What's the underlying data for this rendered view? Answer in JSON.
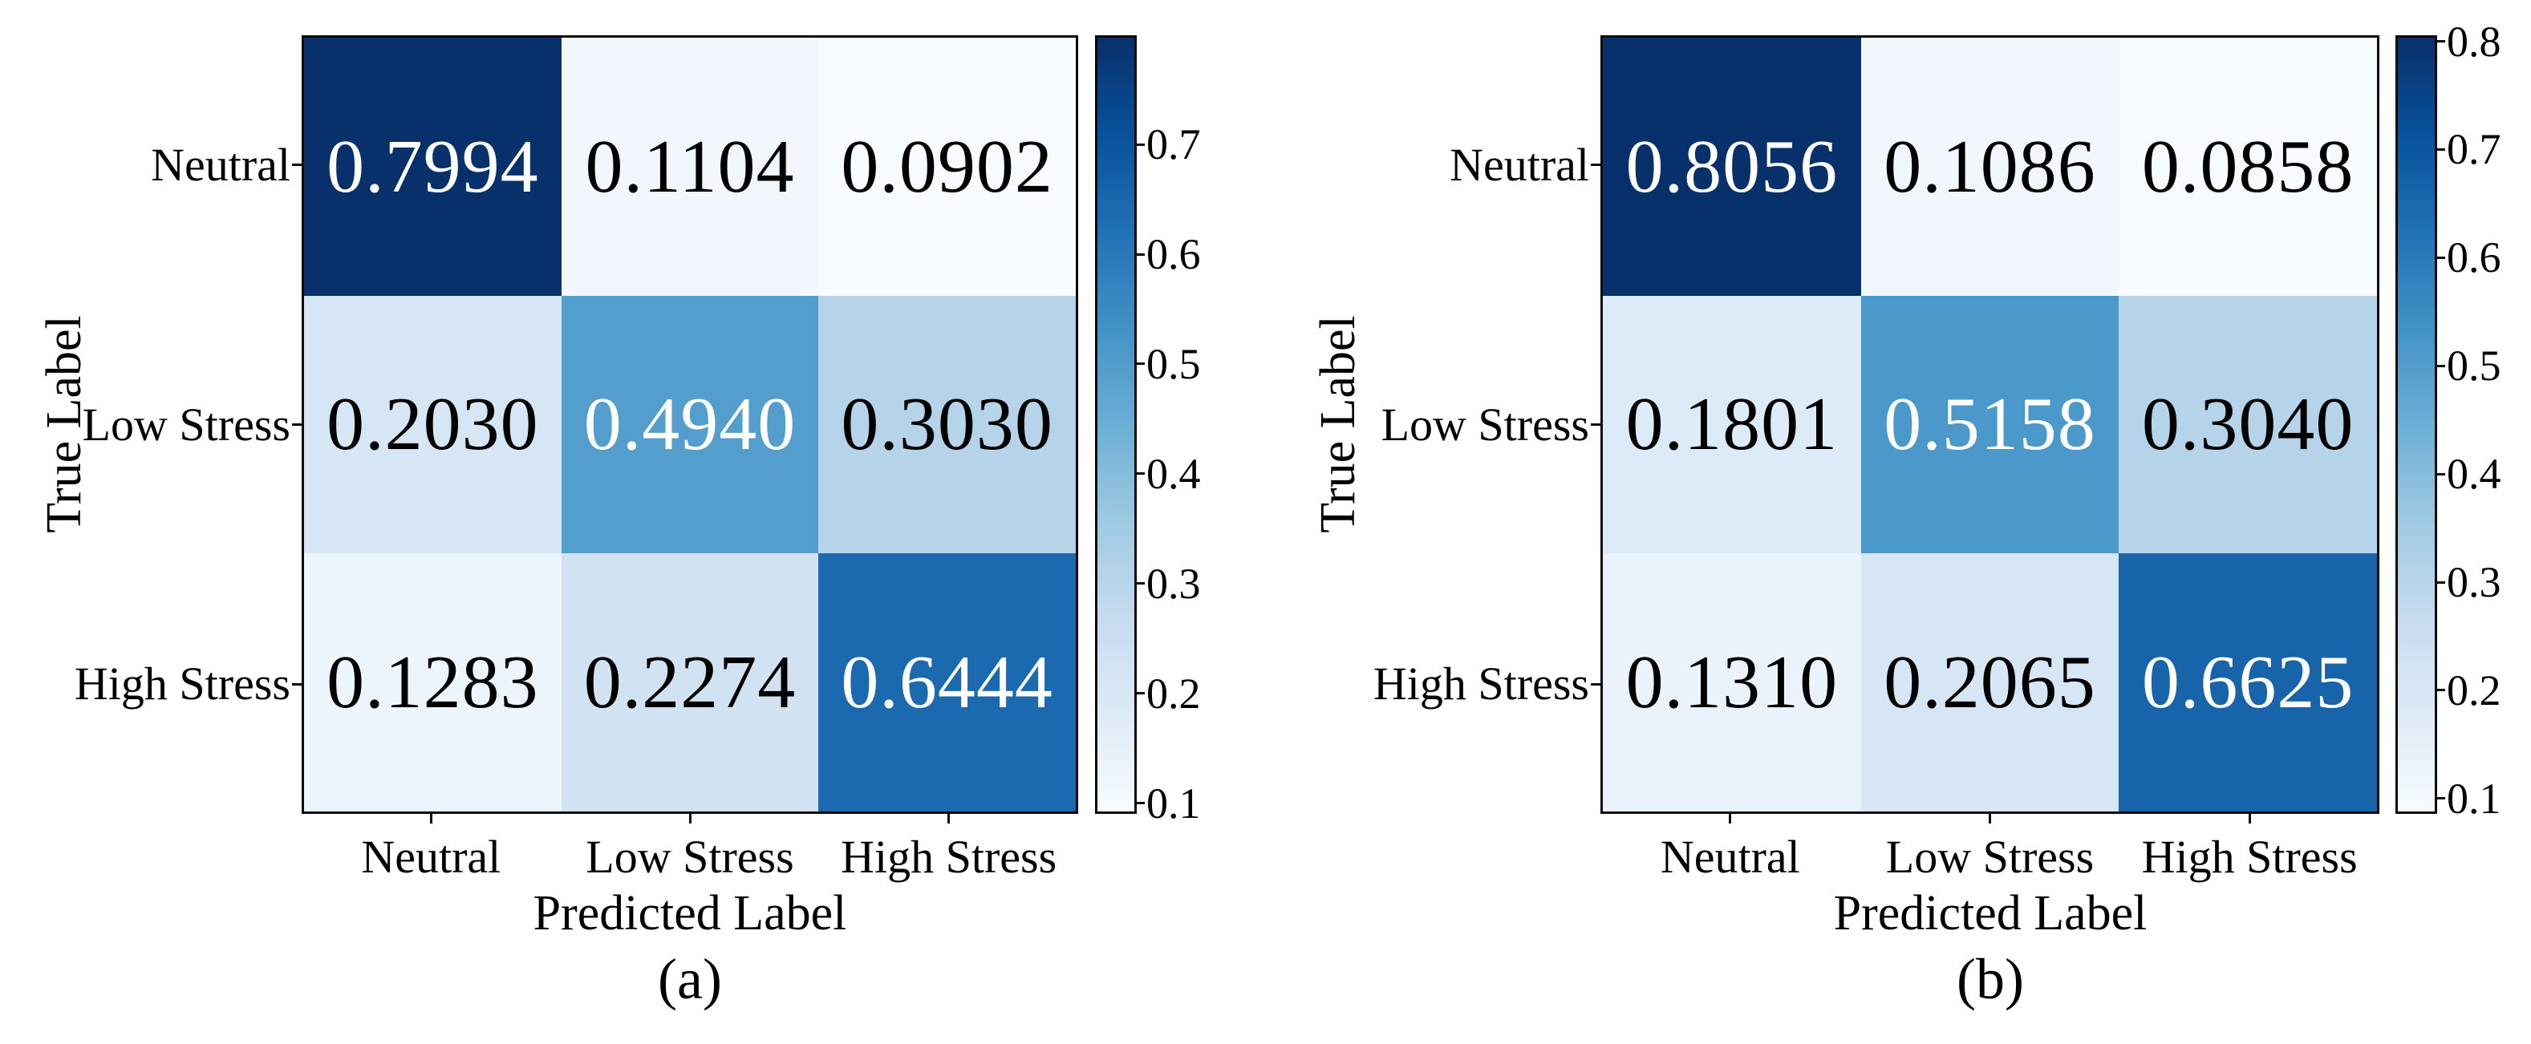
{
  "figure": {
    "background": "#ffffff",
    "text_color": "#000000",
    "spine_color": "#0a0a0a",
    "colormap_name": "Blues",
    "colormap_stops": [
      [
        "0%",
        "#f7fbff"
      ],
      [
        "12.5%",
        "#deebf7"
      ],
      [
        "25%",
        "#c6dbef"
      ],
      [
        "37.5%",
        "#9ecae1"
      ],
      [
        "50%",
        "#6baed6"
      ],
      [
        "62.5%",
        "#4292c6"
      ],
      [
        "75%",
        "#2171b5"
      ],
      [
        "87.5%",
        "#08519c"
      ],
      [
        "100%",
        "#08306b"
      ]
    ]
  },
  "chart_data": [
    {
      "type": "heatmap",
      "panel_label": "(a)",
      "xlabel": "Predicted Label",
      "ylabel": "True Label",
      "x_tick_labels": [
        "Neutral",
        "Low Stress",
        "High Stress"
      ],
      "y_tick_labels": [
        "Neutral",
        "Low Stress",
        "High Stress"
      ],
      "values": [
        [
          0.7994,
          0.1104,
          0.0902
        ],
        [
          0.203,
          0.494,
          0.303
        ],
        [
          0.1283,
          0.2274,
          0.6444
        ]
      ],
      "cell_text": [
        [
          "0.7994",
          "0.1104",
          "0.0902"
        ],
        [
          "0.2030",
          "0.4940",
          "0.3030"
        ],
        [
          "0.1283",
          "0.2274",
          "0.6444"
        ]
      ],
      "cell_colors": [
        [
          "#08306b",
          "#f1f7fd",
          "#f7fbff"
        ],
        [
          "#d7e6f4",
          "#549ecd",
          "#b6d4e9"
        ],
        [
          "#ecf4fc",
          "#d1e2f3",
          "#1b69af"
        ]
      ],
      "cell_text_colors": [
        [
          "#ffffff",
          "#000000",
          "#000000"
        ],
        [
          "#000000",
          "#ffffff",
          "#000000"
        ],
        [
          "#000000",
          "#000000",
          "#ffffff"
        ]
      ],
      "colorbar": {
        "vmin": 0.0902,
        "vmax": 0.7994,
        "tick_values": [
          0.1,
          0.2,
          0.3,
          0.4,
          0.5,
          0.6,
          0.7
        ],
        "tick_labels": [
          "0.1",
          "0.2",
          "0.3",
          "0.4",
          "0.5",
          "0.6",
          "0.7"
        ]
      }
    },
    {
      "type": "heatmap",
      "panel_label": "(b)",
      "xlabel": "Predicted Label",
      "ylabel": "True Label",
      "x_tick_labels": [
        "Neutral",
        "Low Stress",
        "High Stress"
      ],
      "y_tick_labels": [
        "Neutral",
        "Low Stress",
        "High Stress"
      ],
      "values": [
        [
          0.8056,
          0.1086,
          0.0858
        ],
        [
          0.1801,
          0.5158,
          0.304
        ],
        [
          0.131,
          0.2065,
          0.6625
        ]
      ],
      "cell_text": [
        [
          "0.8056",
          "0.1086",
          "0.0858"
        ],
        [
          "0.1801",
          "0.5158",
          "0.3040"
        ],
        [
          "0.1310",
          "0.2065",
          "0.6625"
        ]
      ],
      "cell_colors": [
        [
          "#08306b",
          "#f1f7fd",
          "#f7fbff"
        ],
        [
          "#ddeaf7",
          "#4b98ca",
          "#b5d4e9"
        ],
        [
          "#eaf3fb",
          "#d6e6f4",
          "#1764ab"
        ]
      ],
      "cell_text_colors": [
        [
          "#ffffff",
          "#000000",
          "#000000"
        ],
        [
          "#000000",
          "#ffffff",
          "#000000"
        ],
        [
          "#000000",
          "#000000",
          "#ffffff"
        ]
      ],
      "colorbar": {
        "vmin": 0.0858,
        "vmax": 0.8056,
        "tick_values": [
          0.1,
          0.2,
          0.3,
          0.4,
          0.5,
          0.6,
          0.7,
          0.8
        ],
        "tick_labels": [
          "0.1",
          "0.2",
          "0.3",
          "0.4",
          "0.5",
          "0.6",
          "0.7",
          "0.8"
        ]
      }
    }
  ]
}
